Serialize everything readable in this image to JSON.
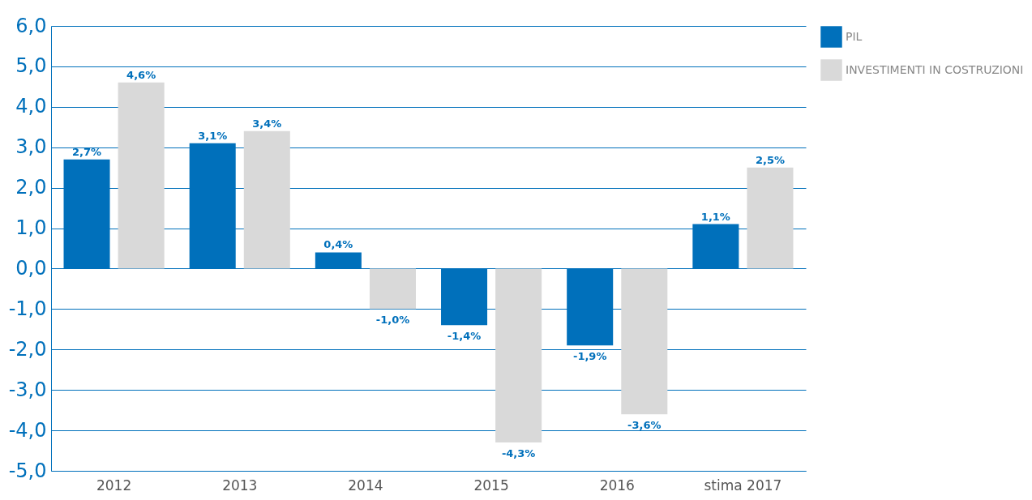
{
  "chart_data": {
    "type": "bar",
    "categories": [
      "2012",
      "2013",
      "2014",
      "2015",
      "2016",
      "stima 2017"
    ],
    "series": [
      {
        "name": "PIL",
        "color": "#0070bb",
        "values": [
          2.7,
          3.1,
          0.4,
          -1.4,
          -1.9,
          1.1
        ],
        "value_labels": [
          "2,7%",
          "3,1%",
          "0,4%",
          "-1,4%",
          "-1,9%",
          "1,1%"
        ]
      },
      {
        "name": "INVESTIMENTI IN COSTRUZIONI",
        "color": "#d9d9d9",
        "values": [
          4.6,
          3.4,
          -1.0,
          -4.3,
          -3.6,
          2.5
        ],
        "value_labels": [
          "4,6%",
          "3,4%",
          "-1,0%",
          "-4,3%",
          "-3,6%",
          "2,5%"
        ]
      }
    ],
    "ylim": [
      -5,
      6
    ],
    "yticks": [
      {
        "value": -5,
        "label": "-5,0"
      },
      {
        "value": -4,
        "label": "-4,0"
      },
      {
        "value": -3,
        "label": "-3,0"
      },
      {
        "value": -2,
        "label": "-2,0"
      },
      {
        "value": -1,
        "label": "-1,0"
      },
      {
        "value": 0,
        "label": "0,0"
      },
      {
        "value": 1,
        "label": "1,0"
      },
      {
        "value": 2,
        "label": "2,0"
      },
      {
        "value": 3,
        "label": "3,0"
      },
      {
        "value": 4,
        "label": "4,0"
      },
      {
        "value": 5,
        "label": "5,0"
      },
      {
        "value": 6,
        "label": "6,0"
      }
    ],
    "grid": "y",
    "legend": "top right"
  }
}
